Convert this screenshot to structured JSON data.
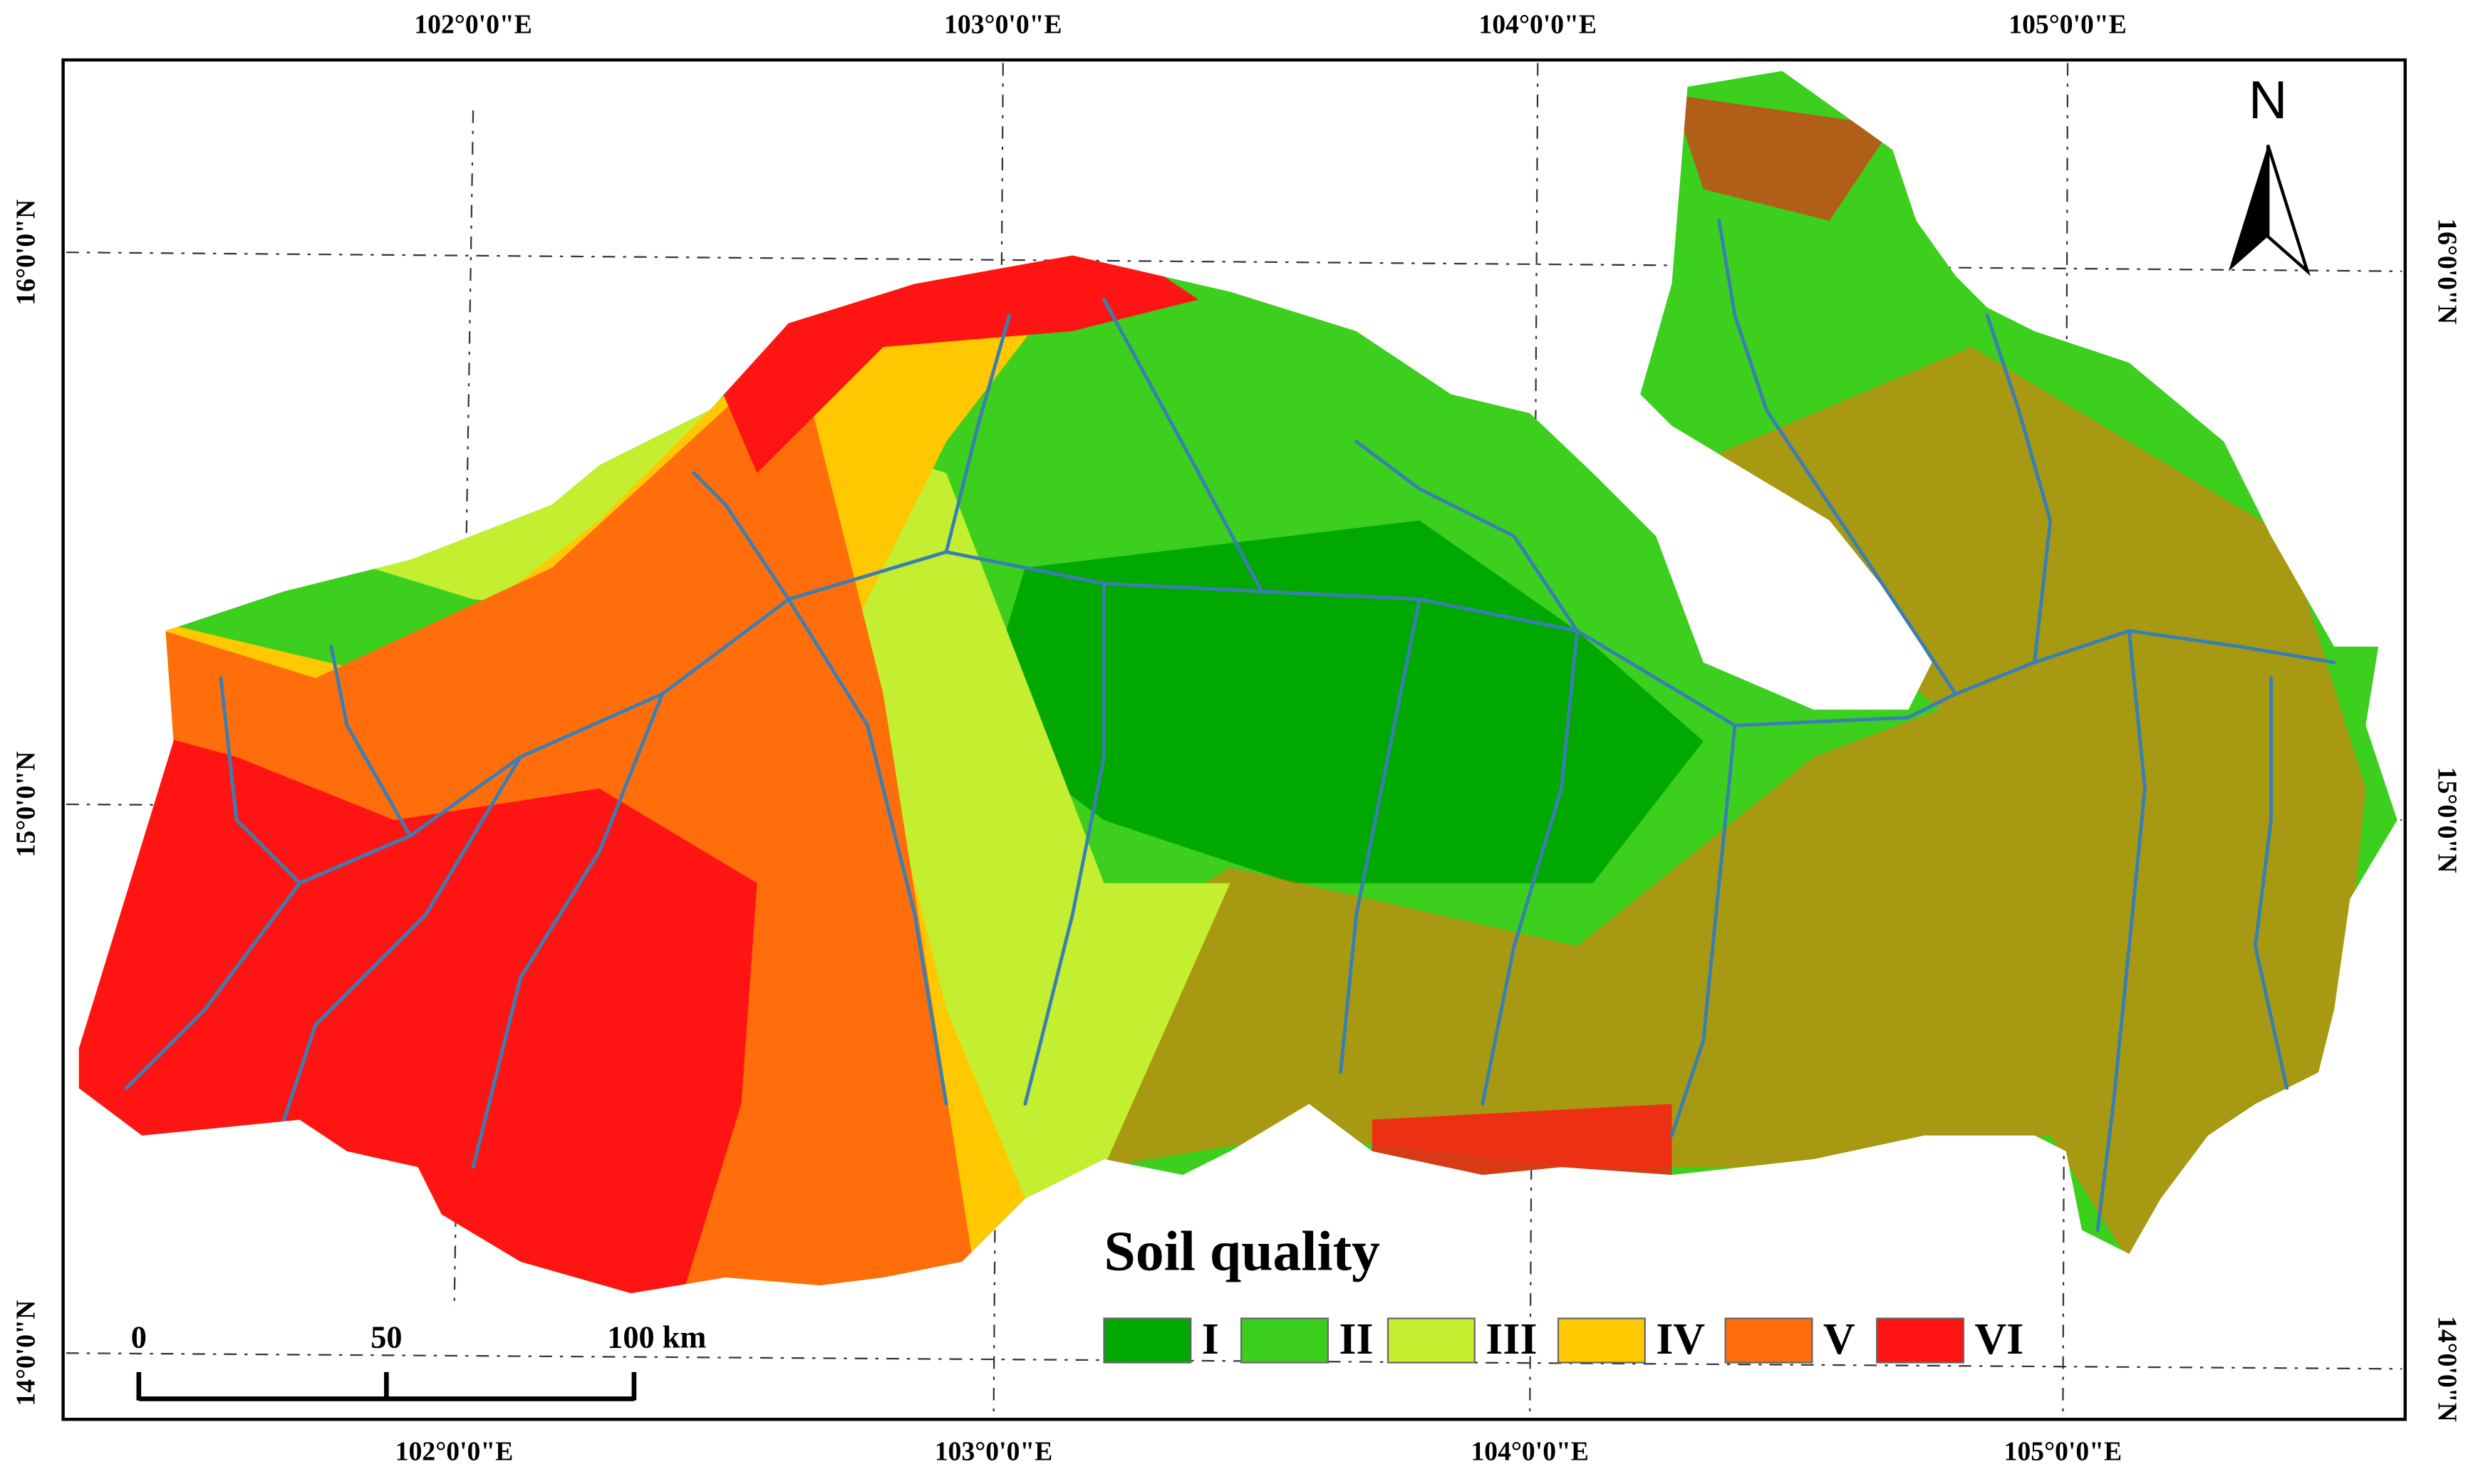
{
  "legend": {
    "title": "Soil quality",
    "items": [
      {
        "label": "I",
        "color": "#00a800"
      },
      {
        "label": "II",
        "color": "#3ccf1e"
      },
      {
        "label": "III",
        "color": "#c4ee30"
      },
      {
        "label": "IV",
        "color": "#ffc800"
      },
      {
        "label": "V",
        "color": "#ff6e0a"
      },
      {
        "label": "VI",
        "color": "#ff1414"
      }
    ]
  },
  "graticule": {
    "top": [
      "102°0'0\"E",
      "103°0'0\"E",
      "104°0'0\"E",
      "105°0'0\"E"
    ],
    "bottom": [
      "102°0'0\"E",
      "103°0'0\"E",
      "104°0'0\"E",
      "105°0'0\"E"
    ],
    "left": [
      "16°0'0\"N",
      "15°0'0\"N",
      "14°0'0\"N"
    ],
    "right": [
      "16°0'0\"N",
      "15°0'0\"N",
      "14°0'0\"N"
    ]
  },
  "north_arrow": "N",
  "scale_bar": [
    "0",
    "50",
    "100 km"
  ]
}
